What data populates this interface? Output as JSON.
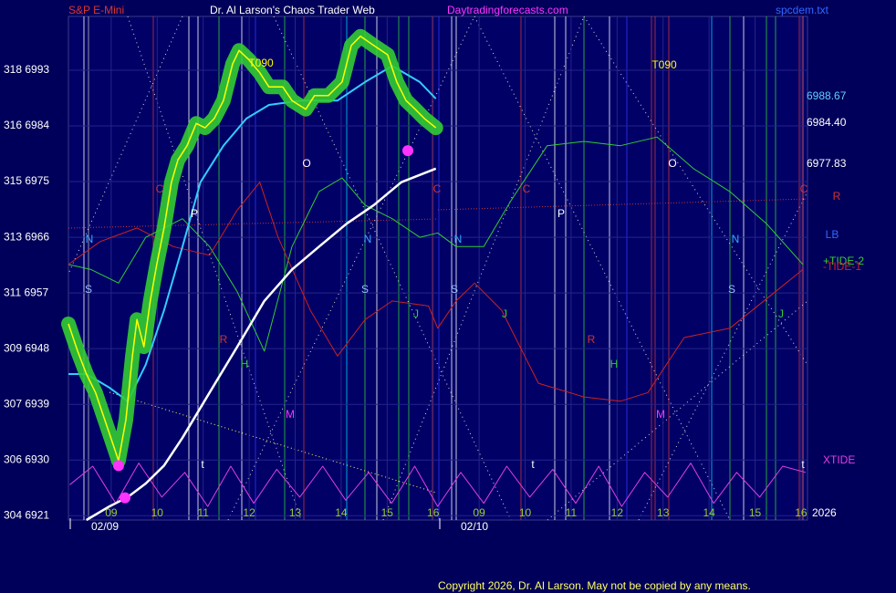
{
  "chart_data": {
    "type": "line",
    "titles": [
      "S&P E-Mini",
      "Dr. Al Larson's Chaos Trader Web",
      "Daytradingforecasts.com",
      "spcdem.txt"
    ],
    "xlim": [
      8.07,
      24.14
    ],
    "ylim": [
      6920.3,
      7001.7
    ],
    "xticks": [
      {
        "value": 9,
        "label": "09"
      },
      10,
      11,
      12,
      13,
      14,
      15,
      16,
      {
        "value": 17,
        "label": "09"
      },
      {
        "value": 18,
        "label": "10"
      },
      {
        "value": 19,
        "label": "11"
      },
      {
        "value": 20,
        "label": "12"
      },
      {
        "value": 21,
        "label": "13"
      },
      {
        "value": 22,
        "label": "14"
      },
      {
        "value": 23,
        "label": "15"
      },
      {
        "value": 24,
        "label": "16"
      }
    ],
    "dates": [
      "02/09",
      "02/10"
    ],
    "yticks": [
      {
        "value": 6921,
        "label": "304  6921"
      },
      {
        "value": 6930,
        "label": "306  6930"
      },
      {
        "value": 6939,
        "label": "307  6939"
      },
      {
        "value": 6948,
        "label": "309  6948"
      },
      {
        "value": 6957,
        "label": "311  6957"
      },
      {
        "value": 6966,
        "label": "313  6966"
      },
      {
        "value": 6975,
        "label": "315  6975"
      },
      {
        "value": 6984,
        "label": "316  6984"
      },
      {
        "value": 6993,
        "label": "318  6993"
      }
    ],
    "grid": true,
    "series": [
      {
        "name": "XTIDE",
        "color": "#e040e0",
        "x": [
          8.1,
          8.6,
          9.1,
          9.6,
          10.1,
          10.6,
          11.1,
          11.6,
          12.1,
          12.6,
          13.1,
          13.6,
          14.1,
          14.6,
          15.1,
          15.6,
          16.1,
          16.6,
          17.1,
          17.6,
          18.1,
          18.6,
          19.1,
          19.6,
          20.1,
          20.6,
          21.1,
          21.6,
          22.1,
          22.6,
          23.1,
          23.6,
          24.1
        ],
        "values": [
          6926,
          6929,
          6923,
          6929.5,
          6924,
          6928,
          6922.5,
          6929,
          6923,
          6928.5,
          6924,
          6929,
          6923.5,
          6928,
          6923,
          6929,
          6922.5,
          6928,
          6923,
          6929,
          6924,
          6928.5,
          6923,
          6929,
          6922.5,
          6928,
          6924,
          6929.5,
          6923,
          6928,
          6924,
          6929,
          6928
        ]
      },
      {
        "name": "+TIDE-2",
        "color": "#33cc33",
        "x": [
          8.07,
          8.56,
          9.16,
          9.75,
          10.55,
          11.14,
          11.74,
          12.33,
          12.93,
          13.52,
          14.02,
          14.52,
          15.11,
          15.71,
          16.1,
          16.5,
          17.1,
          17.69,
          18.48,
          19.28,
          20.07,
          20.87,
          21.66,
          22.45,
          23.25,
          24.04
        ],
        "values": [
          6961.6,
          6960.8,
          6958.6,
          6966.0,
          6969.0,
          6964.5,
          6957.2,
          6947.6,
          6964.5,
          6973.4,
          6975.6,
          6971.2,
          6969.0,
          6966.0,
          6966.7,
          6964.5,
          6964.5,
          6971.9,
          6980.8,
          6981.5,
          6980.8,
          6982.2,
          6977.1,
          6973.4,
          6968.2,
          6961.6
        ]
      },
      {
        "name": "-TIDE-1",
        "color": "#cc2222",
        "x": [
          8.07,
          8.76,
          9.56,
          10.35,
          11.14,
          11.74,
          12.23,
          12.63,
          13.33,
          13.92,
          14.52,
          15.11,
          15.9,
          16.1,
          16.5,
          16.9,
          17.49,
          18.29,
          19.28,
          20.07,
          20.67,
          21.46,
          22.45,
          23.44,
          24.04
        ],
        "values": [
          6961.6,
          6965.3,
          6967.5,
          6964.5,
          6963.1,
          6970.4,
          6974.9,
          6966.0,
          6954.2,
          6946.8,
          6952.7,
          6955.7,
          6954.9,
          6951.3,
          6955.7,
          6958.6,
          6954.2,
          6942.4,
          6940.2,
          6939.5,
          6940.9,
          6949.8,
          6951.3,
          6957.2,
          6960.8
        ]
      },
      {
        "color": "#ffffff",
        "width": 2.5,
        "x": [
          8.46,
          8.96,
          9.36,
          9.75,
          10.15,
          10.55,
          11.14,
          11.74,
          12.33,
          12.93,
          13.52,
          14.12,
          14.71,
          15.31,
          16.06
        ],
        "values": [
          6920.3,
          6922.5,
          6924.0,
          6926.2,
          6929.1,
          6933.6,
          6940.9,
          6948.3,
          6955.7,
          6960.8,
          6964.5,
          6968.2,
          6971.2,
          6974.9,
          6977.1
        ]
      },
      {
        "color": "#33ccff",
        "width": 2,
        "x": [
          8.07,
          8.46,
          8.96,
          9.36,
          9.75,
          10.15,
          10.55,
          10.94,
          11.44,
          11.94,
          12.43,
          13.13,
          13.92,
          14.52,
          15.11,
          15.71,
          16.06
        ],
        "values": [
          6943.9,
          6943.9,
          6941.7,
          6939.5,
          6945.4,
          6954.2,
          6964.5,
          6974.9,
          6980.8,
          6985.2,
          6987.4,
          6988.1,
          6988.1,
          6991.1,
          6993.7,
          6991.1,
          6988.4
        ]
      },
      {
        "color": "#ffff00",
        "glow_color": "#33cc33",
        "width": 1.5,
        "x": [
          8.07,
          8.27,
          8.46,
          8.66,
          8.86,
          9.06,
          9.16,
          9.32,
          9.46,
          9.56,
          9.71,
          9.85,
          9.99,
          10.15,
          10.31,
          10.45,
          10.65,
          10.85,
          11.04,
          11.24,
          11.44,
          11.64,
          11.78,
          11.98,
          12.23,
          12.43,
          12.73,
          12.93,
          13.23,
          13.42,
          13.72,
          14.02,
          14.22,
          14.42,
          14.71,
          15.01,
          15.21,
          15.41,
          15.61,
          15.81,
          16.06
        ],
        "values": [
          6952.0,
          6947.6,
          6943.9,
          6940.9,
          6936.5,
          6932.1,
          6929.9,
          6936.5,
          6946.8,
          6952.7,
          6948.3,
          6955.7,
          6961.6,
          6967.5,
          6974.9,
          6978.5,
          6980.8,
          6984.4,
          6983.7,
          6985.2,
          6988.1,
          6994.0,
          6996.2,
          6994.8,
          6992.6,
          6990.3,
          6990.3,
          6988.1,
          6986.7,
          6988.9,
          6988.9,
          6991.1,
          6997.0,
          6998.5,
          6997.0,
          6995.5,
          6991.1,
          6988.1,
          6986.7,
          6985.2,
          6983.7
        ]
      }
    ],
    "highlights": {
      "color": "#ff33ff",
      "x": [
        9.16,
        9.3,
        15.45
      ],
      "values": [
        6929.1,
        6923.9,
        6980.0
      ]
    },
    "annotations": [
      "N",
      "S",
      "C",
      "P",
      "R",
      "H",
      "M",
      "O",
      "N",
      "S",
      "J",
      "C",
      "N",
      "S",
      "J",
      "C",
      "P",
      "R",
      "H",
      "M",
      "O",
      "N",
      "S",
      "J",
      "C",
      "T090",
      "T090",
      "t",
      "t",
      "t"
    ],
    "right_labels": [
      "6988.67",
      "6984.40",
      "6977.83",
      "R",
      "LB",
      "2026"
    ],
    "copyright": "Copyright 2026, Dr. Al Larson. May not be copied by any means."
  }
}
